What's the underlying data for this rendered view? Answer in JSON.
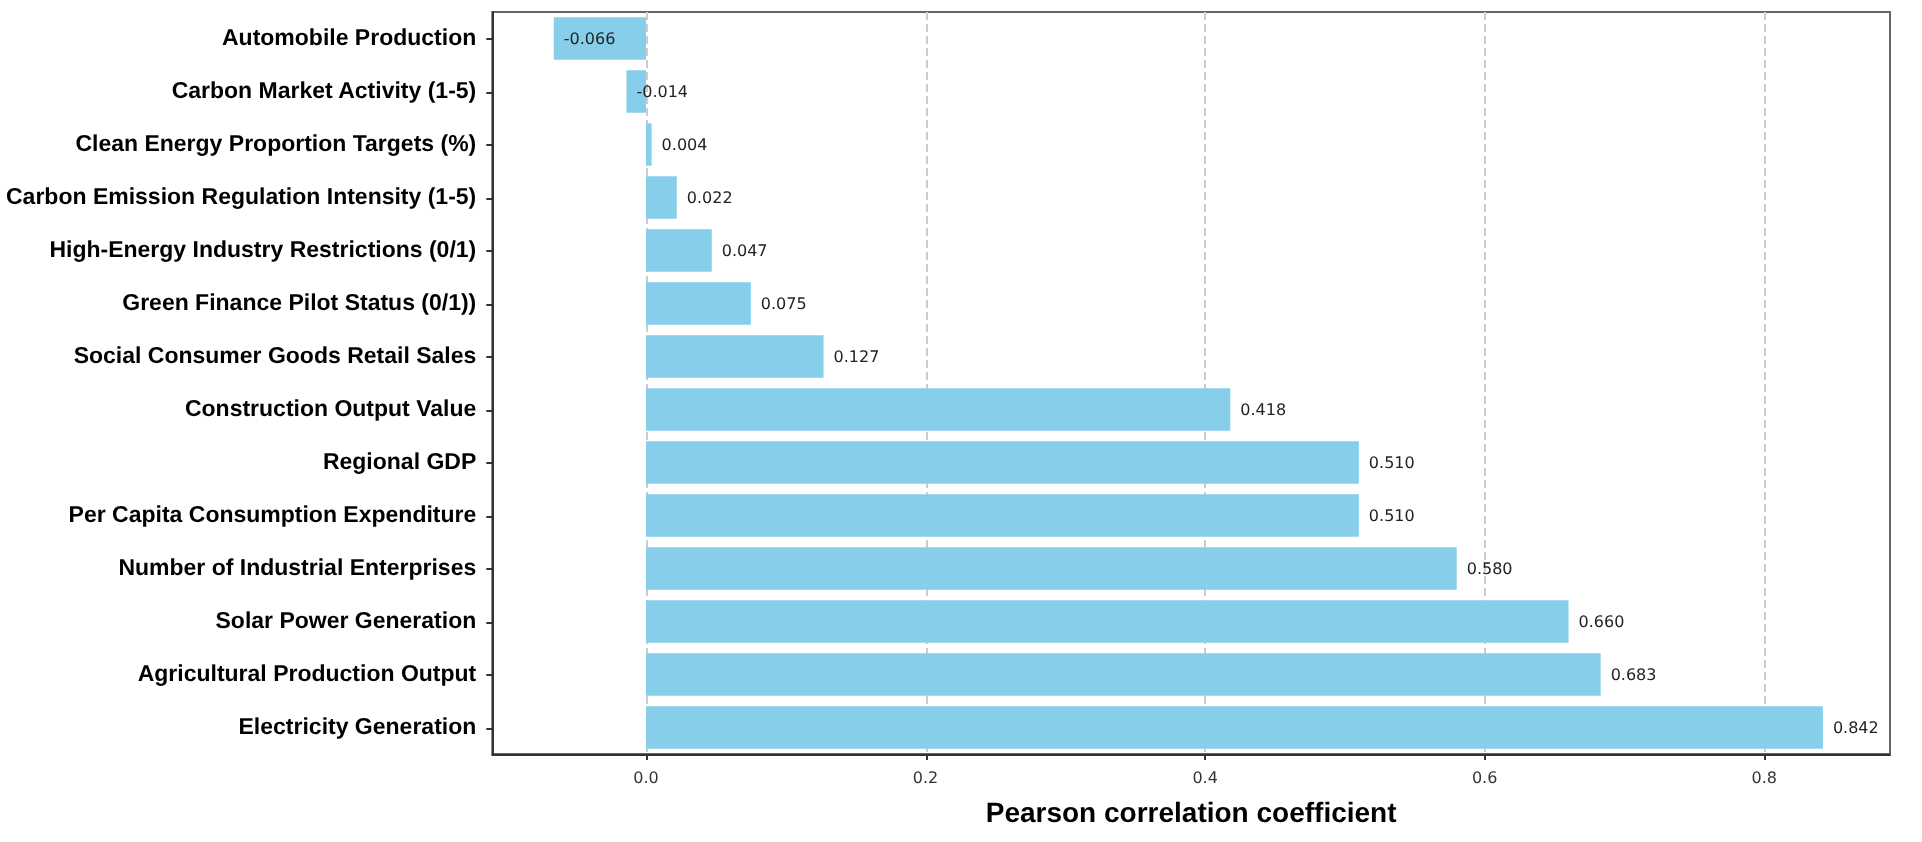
{
  "chart_data": {
    "type": "bar",
    "orientation": "horizontal",
    "xlabel": "Pearson correlation coefficient",
    "categories": [
      "Automobile Production",
      "Carbon Market Activity (1-5)",
      "Clean Energy Proportion Targets (%)",
      "Carbon Emission Regulation Intensity (1-5)",
      "High-Energy Industry Restrictions (0/1)",
      "Green Finance Pilot Status (0/1))",
      "Social Consumer Goods Retail Sales",
      "Construction Output Value",
      "Regional GDP",
      "Per Capita Consumption Expenditure",
      "Number of Industrial Enterprises",
      "Solar Power Generation",
      "Agricultural Production Output",
      "Electricity Generation"
    ],
    "values": [
      -0.066,
      -0.014,
      0.004,
      0.022,
      0.047,
      0.075,
      0.127,
      0.418,
      0.51,
      0.51,
      0.58,
      0.66,
      0.683,
      0.842
    ],
    "value_labels": [
      "-0.066",
      "-0.014",
      "0.004",
      "0.022",
      "0.047",
      "0.075",
      "0.127",
      "0.418",
      "0.510",
      "0.510",
      "0.580",
      "0.660",
      "0.683",
      "0.842"
    ],
    "color": "#87ceeb",
    "xlim": [
      -0.11,
      0.89
    ],
    "xticks": [
      {
        "value": 0,
        "label": "0.0"
      },
      {
        "value": 0.2,
        "label": "0.2"
      },
      {
        "value": 0.4,
        "label": "0.4"
      },
      {
        "value": 0.6,
        "label": "0.6"
      },
      {
        "value": 0.8,
        "label": "0.8"
      }
    ],
    "grid": "x"
  }
}
